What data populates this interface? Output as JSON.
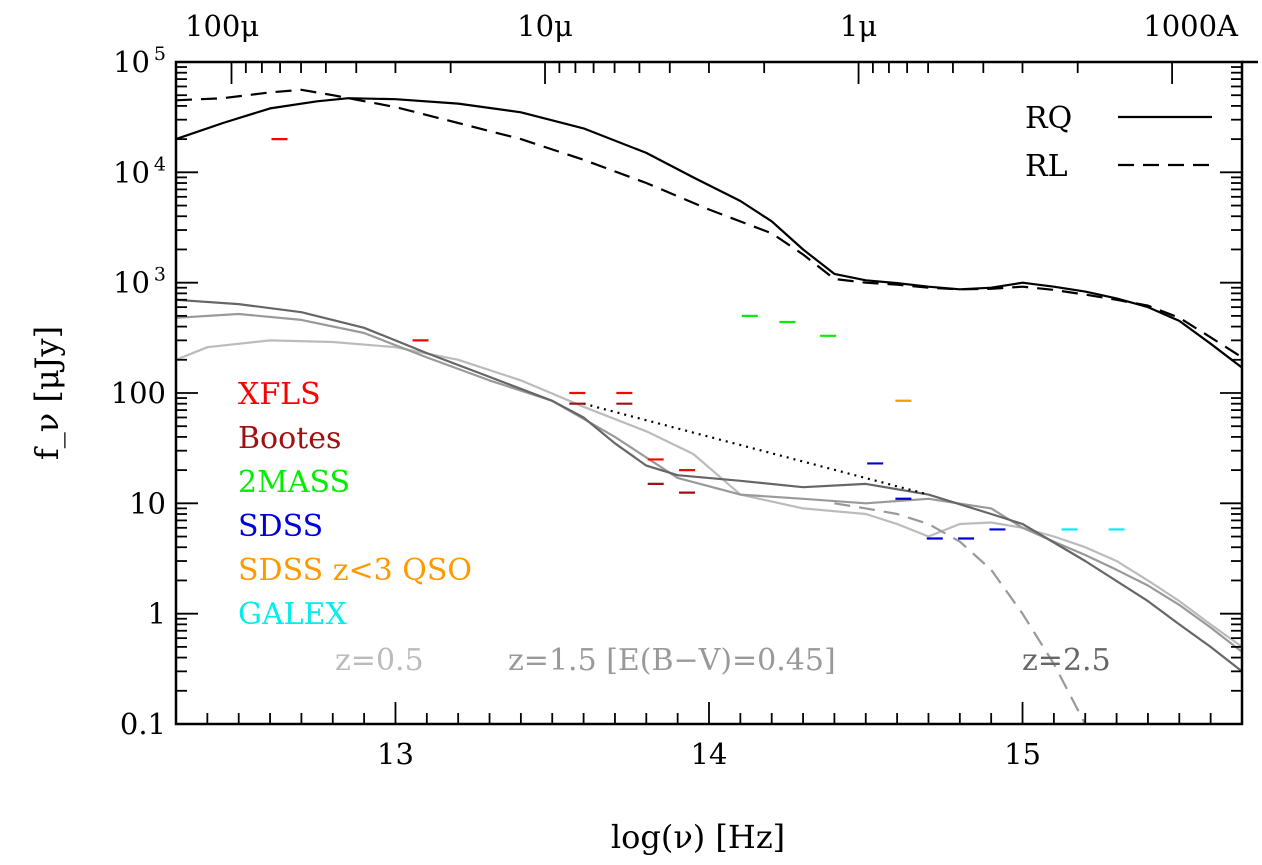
{
  "chart_data": {
    "type": "line",
    "xlabel": "log(ν) [Hz]",
    "ylabel": "f_ν [μJy]",
    "xlim": [
      12.3,
      15.7
    ],
    "ylim": [
      0.1,
      100000
    ],
    "y_scale": "log",
    "x_ticks": [
      {
        "value": 13,
        "label": "13"
      },
      {
        "value": 14,
        "label": "14"
      },
      {
        "value": 15,
        "label": "15"
      }
    ],
    "y_ticks": [
      {
        "value": 0.1,
        "label": "0.1"
      },
      {
        "value": 1,
        "label": "1"
      },
      {
        "value": 10,
        "label": "10"
      },
      {
        "value": 100,
        "label": "100"
      },
      {
        "value": 1000,
        "label": "10",
        "exp": "3"
      },
      {
        "value": 10000,
        "label": "10",
        "exp": "4"
      },
      {
        "value": 100000,
        "label": "10",
        "exp": "5"
      }
    ],
    "top_axis": {
      "ticks": [
        {
          "value": 12.477,
          "label": "100μ"
        },
        {
          "value": 13.477,
          "label": "10μ"
        },
        {
          "value": 14.477,
          "label": "1μ"
        },
        {
          "value": 15.477,
          "label": "1000A"
        }
      ]
    },
    "legend": {
      "position": "top-right",
      "entries": [
        {
          "label": "RQ",
          "style": "solid"
        },
        {
          "label": "RL",
          "style": "dashed"
        }
      ]
    },
    "survey_labels": [
      {
        "text": "XFLS",
        "color": "#ff0000"
      },
      {
        "text": "Bootes",
        "color": "#a01010"
      },
      {
        "text": "2MASS",
        "color": "#00ee00"
      },
      {
        "text": "SDSS",
        "color": "#0000dd"
      },
      {
        "text": "SDSS z<3 QSO",
        "color": "#ff9900"
      },
      {
        "text": "GALEX",
        "color": "#00eeee"
      }
    ],
    "redshift_labels": [
      {
        "text": "z=0.5",
        "color": "#bbbbbb",
        "x": 13.0,
        "y": 0.55
      },
      {
        "text": "z=1.5 [E(B−V)=0.45]",
        "color": "#999999",
        "x": 14.1,
        "y": 0.55
      },
      {
        "text": "z=2.5",
        "color": "#666666",
        "x": 15.1,
        "y": 0.55
      }
    ],
    "series": [
      {
        "name": "RQ",
        "color": "#000000",
        "dash": "solid",
        "x": [
          12.3,
          12.45,
          12.6,
          12.75,
          12.85,
          13.0,
          13.2,
          13.4,
          13.6,
          13.8,
          13.95,
          14.1,
          14.2,
          14.3,
          14.4,
          14.5,
          14.6,
          14.7,
          14.8,
          14.9,
          15.0,
          15.1,
          15.2,
          15.3,
          15.4,
          15.5,
          15.6,
          15.7
        ],
        "y": [
          20000,
          28000,
          38000,
          44000,
          47000,
          46000,
          42000,
          35000,
          25000,
          15000,
          9000,
          5500,
          3600,
          2000,
          1200,
          1050,
          990,
          920,
          870,
          900,
          1000,
          920,
          830,
          720,
          600,
          450,
          280,
          170
        ]
      },
      {
        "name": "RL",
        "color": "#000000",
        "dash": "dashed",
        "x": [
          12.3,
          12.45,
          12.6,
          12.7,
          12.8,
          13.0,
          13.2,
          13.4,
          13.6,
          13.8,
          14.0,
          14.2,
          14.3,
          14.4,
          14.5,
          14.6,
          14.7,
          14.8,
          14.9,
          15.0,
          15.1,
          15.2,
          15.3,
          15.4,
          15.5,
          15.6,
          15.7
        ],
        "y": [
          45000,
          47000,
          53000,
          56000,
          50000,
          39000,
          28000,
          20000,
          13000,
          8000,
          4600,
          2800,
          1800,
          1080,
          1000,
          960,
          900,
          870,
          880,
          920,
          860,
          780,
          700,
          620,
          480,
          320,
          210
        ]
      },
      {
        "name": "z=0.5",
        "color": "#bbbbbb",
        "dash": "solid",
        "x": [
          12.3,
          12.4,
          12.6,
          12.8,
          13.0,
          13.2,
          13.4,
          13.6,
          13.8,
          13.95,
          14.1,
          14.3,
          14.5,
          14.6,
          14.7,
          14.8,
          14.9,
          15.0,
          15.1,
          15.2,
          15.3,
          15.4,
          15.5,
          15.6,
          15.7
        ],
        "y": [
          200,
          260,
          300,
          290,
          260,
          200,
          130,
          75,
          45,
          28,
          12,
          9,
          8,
          6.5,
          5,
          6.5,
          6.7,
          6.0,
          5.0,
          4.0,
          3.0,
          2.0,
          1.3,
          0.8,
          0.5
        ]
      },
      {
        "name": "z=1.5 [E(B−V)=0.45]",
        "color": "#999999",
        "dash": "solid",
        "x": [
          12.3,
          12.5,
          12.7,
          12.9,
          13.1,
          13.3,
          13.5,
          13.7,
          13.9,
          14.1,
          14.3,
          14.5,
          14.7,
          14.9,
          15.0,
          15.1,
          15.2,
          15.3,
          15.4,
          15.5,
          15.6,
          15.7
        ],
        "y": [
          480,
          520,
          460,
          350,
          210,
          130,
          85,
          40,
          17,
          12,
          11,
          10,
          11,
          9,
          6.0,
          4.5,
          3.4,
          2.5,
          1.8,
          1.2,
          0.75,
          0.45
        ]
      },
      {
        "name": "z=1.5 unreddened",
        "color": "#999999",
        "dash": "dashed",
        "x": [
          14.4,
          14.5,
          14.6,
          14.7,
          14.8,
          14.9,
          15.0,
          15.1,
          15.2
        ],
        "y": [
          10,
          9,
          8,
          6.5,
          4.5,
          2.5,
          1.0,
          0.35,
          0.1
        ]
      },
      {
        "name": "z=2.5",
        "color": "#666666",
        "dash": "solid",
        "x": [
          12.3,
          12.5,
          12.7,
          12.9,
          13.1,
          13.3,
          13.5,
          13.6,
          13.7,
          13.8,
          13.9,
          14.1,
          14.3,
          14.5,
          14.7,
          14.9,
          15.0,
          15.2,
          15.4,
          15.5,
          15.6,
          15.7
        ],
        "y": [
          700,
          640,
          540,
          390,
          230,
          140,
          85,
          60,
          35,
          22,
          18,
          16,
          14,
          15,
          12,
          8,
          6.5,
          3.0,
          1.3,
          0.8,
          0.5,
          0.3
        ]
      },
      {
        "name": "power-law",
        "color": "#000000",
        "dash": "dotted",
        "x": [
          13.6,
          14.7
        ],
        "y": [
          80,
          12
        ]
      }
    ],
    "flux_limits": [
      {
        "survey": "XFLS",
        "color": "#ff0000",
        "x": 12.63,
        "y": 20000
      },
      {
        "survey": "XFLS",
        "color": "#ff0000",
        "x": 13.08,
        "y": 300
      },
      {
        "survey": "XFLS",
        "color": "#ff0000",
        "x": 13.58,
        "y": 100
      },
      {
        "survey": "XFLS",
        "color": "#ff0000",
        "x": 13.73,
        "y": 100
      },
      {
        "survey": "XFLS",
        "color": "#ff0000",
        "x": 13.83,
        "y": 25
      },
      {
        "survey": "XFLS",
        "color": "#ff0000",
        "x": 13.93,
        "y": 20
      },
      {
        "survey": "Bootes",
        "color": "#a01010",
        "x": 13.58,
        "y": 80
      },
      {
        "survey": "Bootes",
        "color": "#a01010",
        "x": 13.73,
        "y": 80
      },
      {
        "survey": "Bootes",
        "color": "#a01010",
        "x": 13.83,
        "y": 15
      },
      {
        "survey": "Bootes",
        "color": "#a01010",
        "x": 13.93,
        "y": 12.5
      },
      {
        "survey": "2MASS",
        "color": "#00ee00",
        "x": 14.13,
        "y": 500
      },
      {
        "survey": "2MASS",
        "color": "#00ee00",
        "x": 14.25,
        "y": 440
      },
      {
        "survey": "2MASS",
        "color": "#00ee00",
        "x": 14.38,
        "y": 330
      },
      {
        "survey": "SDSS",
        "color": "#0000dd",
        "x": 14.53,
        "y": 23
      },
      {
        "survey": "SDSS",
        "color": "#0000dd",
        "x": 14.62,
        "y": 11
      },
      {
        "survey": "SDSS",
        "color": "#0000dd",
        "x": 14.72,
        "y": 4.8
      },
      {
        "survey": "SDSS",
        "color": "#0000dd",
        "x": 14.82,
        "y": 4.8
      },
      {
        "survey": "SDSS",
        "color": "#0000dd",
        "x": 14.92,
        "y": 5.8
      },
      {
        "survey": "SDSS z<3 QSO",
        "color": "#ff9900",
        "x": 14.62,
        "y": 85
      },
      {
        "survey": "GALEX",
        "color": "#00eeee",
        "x": 15.15,
        "y": 5.8
      },
      {
        "survey": "GALEX",
        "color": "#00eeee",
        "x": 15.3,
        "y": 5.8
      }
    ]
  }
}
